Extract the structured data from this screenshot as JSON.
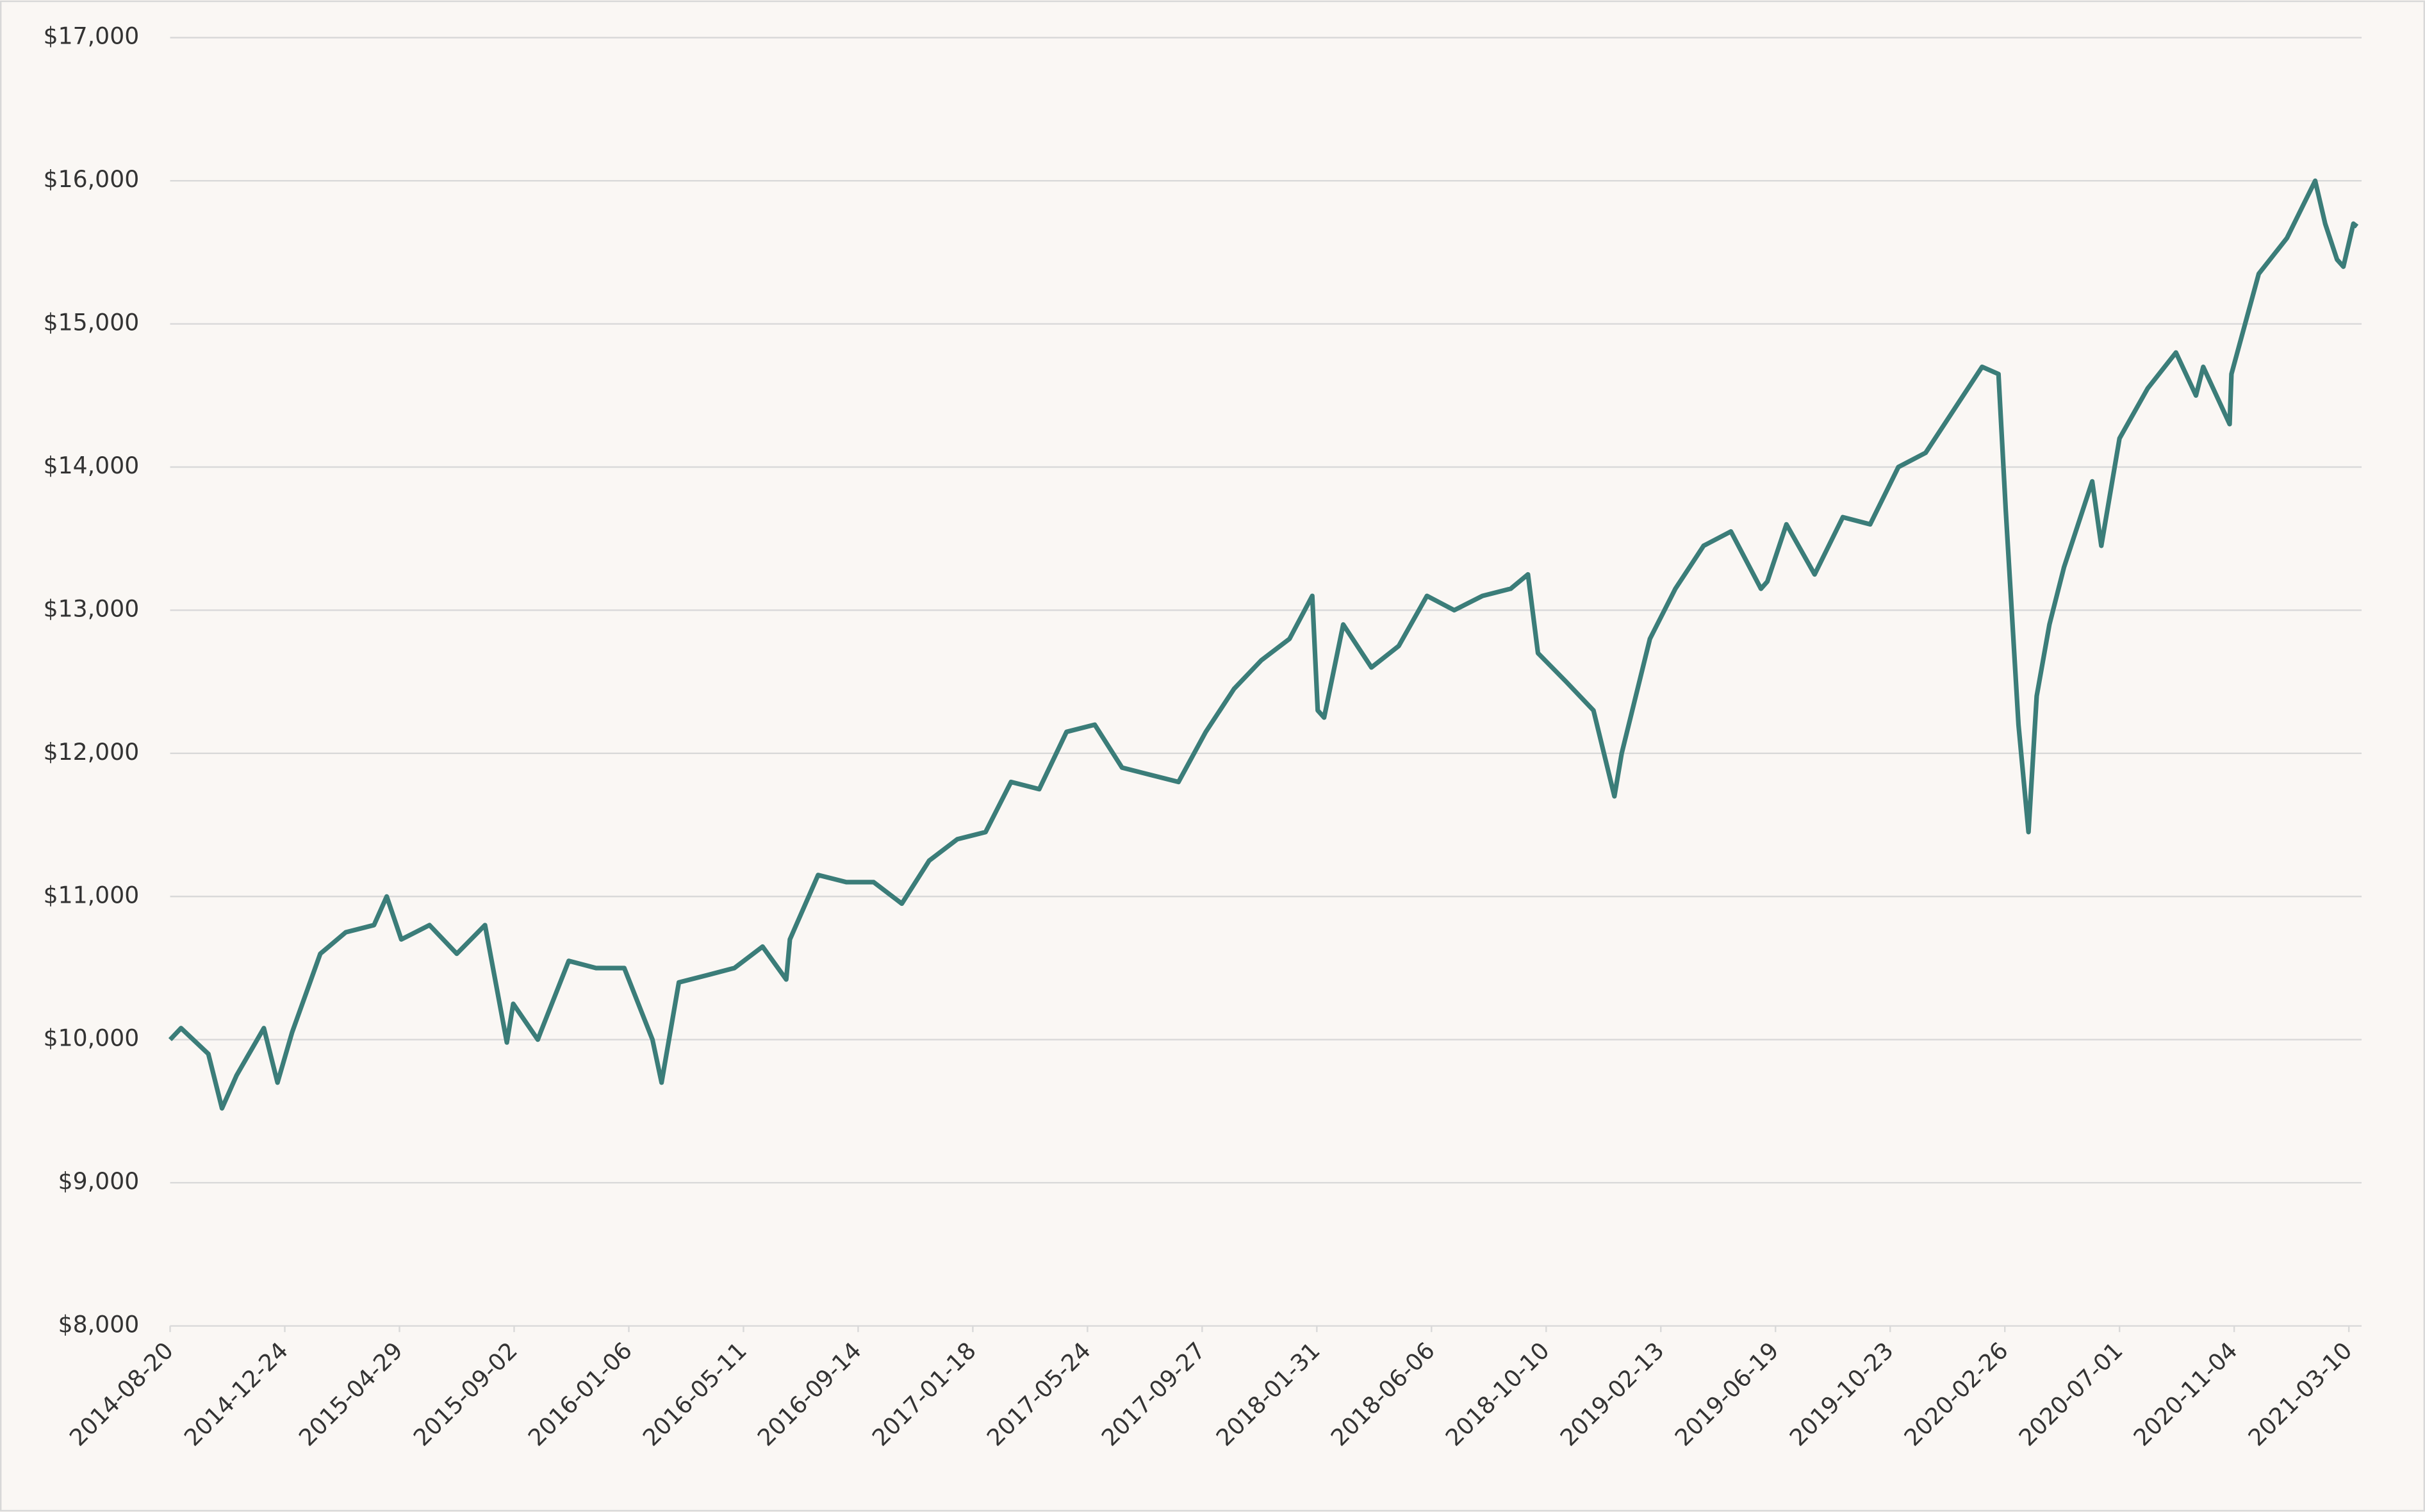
{
  "chart_data": {
    "type": "line",
    "x": [
      "2014-08-20",
      "2014-09-01",
      "2014-10-01",
      "2014-10-16",
      "2014-11-01",
      "2014-12-01",
      "2014-12-16",
      "2015-01-01",
      "2015-02-01",
      "2015-03-01",
      "2015-04-01",
      "2015-04-15",
      "2015-05-01",
      "2015-06-01",
      "2015-07-01",
      "2015-08-01",
      "2015-08-25",
      "2015-09-01",
      "2015-09-28",
      "2015-10-01",
      "2015-11-01",
      "2015-12-01",
      "2016-01-01",
      "2016-02-01",
      "2016-02-11",
      "2016-03-01",
      "2016-04-01",
      "2016-05-01",
      "2016-06-01",
      "2016-06-27",
      "2016-07-01",
      "2016-08-01",
      "2016-09-01",
      "2016-10-01",
      "2016-11-01",
      "2016-12-01",
      "2017-01-01",
      "2017-02-01",
      "2017-03-01",
      "2017-04-01",
      "2017-05-01",
      "2017-06-01",
      "2017-07-01",
      "2017-08-01",
      "2017-09-01",
      "2017-10-01",
      "2017-11-01",
      "2017-12-01",
      "2018-01-01",
      "2018-01-26",
      "2018-02-01",
      "2018-02-08",
      "2018-03-01",
      "2018-04-01",
      "2018-05-01",
      "2018-06-01",
      "2018-07-01",
      "2018-08-01",
      "2018-09-01",
      "2018-09-20",
      "2018-10-01",
      "2018-11-01",
      "2018-12-01",
      "2018-12-24",
      "2019-01-01",
      "2019-02-01",
      "2019-03-01",
      "2019-04-01",
      "2019-05-01",
      "2019-06-03",
      "2019-06-10",
      "2019-07-01",
      "2019-08-01",
      "2019-09-01",
      "2019-10-01",
      "2019-11-01",
      "2019-12-01",
      "2020-01-01",
      "2020-02-01",
      "2020-02-19",
      "2020-02-27",
      "2020-03-12",
      "2020-03-23",
      "2020-04-01",
      "2020-04-15",
      "2020-05-01",
      "2020-06-01",
      "2020-06-11",
      "2020-07-01",
      "2020-08-01",
      "2020-09-01",
      "2020-09-23",
      "2020-10-01",
      "2020-10-30",
      "2020-11-01",
      "2020-12-01",
      "2021-01-01",
      "2021-02-01",
      "2021-02-12",
      "2021-02-25",
      "2021-03-04",
      "2021-03-15",
      "2021-03-19"
    ],
    "values": [
      10000,
      10080,
      9900,
      9520,
      9750,
      10080,
      9700,
      10050,
      10600,
      10750,
      10800,
      11000,
      10700,
      10800,
      10600,
      10800,
      9980,
      10250,
      10000,
      10050,
      10550,
      10500,
      10500,
      10000,
      9700,
      10400,
      10450,
      10500,
      10650,
      10420,
      10700,
      11150,
      11100,
      11100,
      10950,
      11250,
      11400,
      11450,
      11800,
      11750,
      12150,
      12200,
      11900,
      11850,
      11800,
      12150,
      12450,
      12650,
      12800,
      13100,
      12300,
      12250,
      12900,
      12600,
      12750,
      13100,
      13000,
      13100,
      13150,
      13250,
      12700,
      12500,
      12300,
      11700,
      12000,
      12800,
      13150,
      13450,
      13550,
      13150,
      13200,
      13600,
      13250,
      13650,
      13600,
      14000,
      14100,
      14400,
      14700,
      14650,
      13700,
      12200,
      11450,
      12400,
      12900,
      13300,
      13900,
      13450,
      14200,
      14550,
      14800,
      14500,
      14700,
      14300,
      14650,
      15350,
      15600,
      16000,
      15700,
      15450,
      15400,
      15700,
      15680
    ],
    "color": "#3b7d79",
    "xlim": [
      "2014-08-20",
      "2021-03-24"
    ],
    "xticks": [
      "2014-08-20",
      "2014-12-24",
      "2015-04-29",
      "2015-09-02",
      "2016-01-06",
      "2016-05-11",
      "2016-09-14",
      "2017-01-18",
      "2017-05-24",
      "2017-09-27",
      "2018-01-31",
      "2018-06-06",
      "2018-10-10",
      "2019-02-13",
      "2019-06-19",
      "2019-10-23",
      "2020-02-26",
      "2020-07-01",
      "2020-11-04",
      "2021-03-10"
    ],
    "ylim": [
      8000,
      17000
    ],
    "yticks": [
      {
        "value": 8000,
        "label": "$8,000"
      },
      {
        "value": 9000,
        "label": "$9,000"
      },
      {
        "value": 10000,
        "label": "$10,000"
      },
      {
        "value": 11000,
        "label": "$11,000"
      },
      {
        "value": 12000,
        "label": "$12,000"
      },
      {
        "value": 13000,
        "label": "$13,000"
      },
      {
        "value": 14000,
        "label": "$14,000"
      },
      {
        "value": 15000,
        "label": "$15,000"
      },
      {
        "value": 16000,
        "label": "$16,000"
      },
      {
        "value": 17000,
        "label": "$17,000"
      }
    ],
    "grid": true
  }
}
